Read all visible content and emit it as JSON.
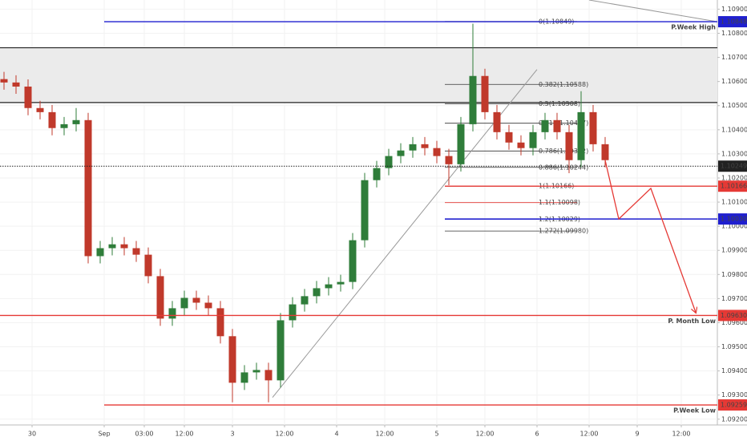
{
  "chart_data": {
    "type": "candlestick",
    "xlim": [
      0,
      179
    ],
    "xticks": [
      {
        "value": 8,
        "label": "30"
      },
      {
        "value": 26,
        "label": "Sep"
      },
      {
        "value": 36,
        "label": "03:00"
      },
      {
        "value": 46,
        "label": "12:00"
      },
      {
        "value": 58,
        "label": "3"
      },
      {
        "value": 71,
        "label": "12:00"
      },
      {
        "value": 84,
        "label": "4"
      },
      {
        "value": 96,
        "label": "12:00"
      },
      {
        "value": 109,
        "label": "5"
      },
      {
        "value": 121,
        "label": "12:00"
      },
      {
        "value": 134,
        "label": "6"
      },
      {
        "value": 147,
        "label": "12:00"
      },
      {
        "value": 159,
        "label": "9"
      },
      {
        "value": 170,
        "label": "12:00"
      }
    ],
    "ylim": [
      1.09176,
      1.10938
    ],
    "yticks": [
      {
        "value": 1.092,
        "label": "1.09200"
      },
      {
        "value": 1.093,
        "label": "1.09300"
      },
      {
        "value": 1.094,
        "label": "1.09400"
      },
      {
        "value": 1.095,
        "label": "1.09500"
      },
      {
        "value": 1.096,
        "label": "1.09600"
      },
      {
        "value": 1.097,
        "label": "1.09700"
      },
      {
        "value": 1.098,
        "label": "1.09800"
      },
      {
        "value": 1.099,
        "label": "1.09900"
      },
      {
        "value": 1.1,
        "label": "1.10000"
      },
      {
        "value": 1.101,
        "label": "1.10100"
      },
      {
        "value": 1.102,
        "label": "1.10200"
      },
      {
        "value": 1.103,
        "label": "1.10300"
      },
      {
        "value": 1.104,
        "label": "1.10400"
      },
      {
        "value": 1.105,
        "label": "1.10500"
      },
      {
        "value": 1.106,
        "label": "1.10600"
      },
      {
        "value": 1.107,
        "label": "1.10700"
      },
      {
        "value": 1.108,
        "label": "1.10800"
      },
      {
        "value": 1.109,
        "label": "1.10900"
      }
    ],
    "grid": true,
    "up_color": "#2f7d3a",
    "down_color": "#c0392b",
    "x": [
      1,
      4,
      7,
      10,
      13,
      16,
      19,
      22,
      25,
      28,
      31,
      34,
      37,
      40,
      43,
      46,
      49,
      52,
      55,
      58,
      61,
      64,
      67,
      70,
      73,
      76,
      79,
      82,
      85,
      88,
      91,
      94,
      97,
      100,
      103,
      106,
      109,
      112,
      115,
      118,
      121,
      124,
      127,
      130,
      133,
      136,
      139,
      142,
      145,
      148,
      151
    ],
    "open": [
      1.1061,
      1.10596,
      1.10579,
      1.1049,
      1.10473,
      1.10407,
      1.10423,
      1.1044,
      1.09876,
      1.09909,
      1.09925,
      1.09909,
      1.09882,
      1.09793,
      1.09617,
      1.0966,
      1.09703,
      1.09683,
      1.0966,
      1.09544,
      1.09351,
      1.09394,
      1.09404,
      1.09361,
      1.0961,
      1.09676,
      1.0971,
      1.09743,
      1.09759,
      1.09769,
      1.09942,
      1.10191,
      1.10241,
      1.10291,
      1.10314,
      1.1034,
      1.10324,
      1.10291,
      1.10257,
      1.10423,
      1.10623,
      1.10473,
      1.1039,
      1.10347,
      1.10324,
      1.1039,
      1.1044,
      1.1039,
      1.10274,
      1.10473,
      1.1034
    ],
    "high": [
      1.1064,
      1.10626,
      1.10609,
      1.1052,
      1.10503,
      1.10453,
      1.1049,
      1.1047,
      1.09939,
      1.09955,
      1.09955,
      1.09939,
      1.09912,
      1.09823,
      1.0969,
      1.09733,
      1.09733,
      1.09713,
      1.0969,
      1.09574,
      1.09424,
      1.09434,
      1.09434,
      1.0964,
      1.09706,
      1.0974,
      1.09773,
      1.09789,
      1.09799,
      1.09972,
      1.10221,
      1.10271,
      1.10321,
      1.10344,
      1.1037,
      1.1037,
      1.10354,
      1.10321,
      1.10453,
      1.1084,
      1.10653,
      1.10503,
      1.1042,
      1.10377,
      1.1042,
      1.1047,
      1.1047,
      1.1042,
      1.1056,
      1.10503,
      1.1037
    ],
    "low": [
      1.10566,
      1.10549,
      1.1046,
      1.10443,
      1.10377,
      1.10377,
      1.10393,
      1.09846,
      1.09846,
      1.09879,
      1.09879,
      1.09852,
      1.09763,
      1.09587,
      1.09587,
      1.0963,
      1.09653,
      1.0963,
      1.09514,
      1.0927,
      1.09321,
      1.09364,
      1.0927,
      1.09331,
      1.0958,
      1.09646,
      1.0968,
      1.09713,
      1.09729,
      1.09739,
      1.09912,
      1.10161,
      1.10211,
      1.10261,
      1.10284,
      1.10294,
      1.10261,
      1.1017,
      1.10227,
      1.10393,
      1.10443,
      1.1036,
      1.10317,
      1.10294,
      1.10294,
      1.1036,
      1.1036,
      1.1022,
      1.10244,
      1.1031,
      1.10244
    ],
    "close": [
      1.10596,
      1.10579,
      1.1049,
      1.10473,
      1.10407,
      1.10423,
      1.1044,
      1.09876,
      1.09909,
      1.09925,
      1.09909,
      1.09882,
      1.09793,
      1.09617,
      1.0966,
      1.09703,
      1.09683,
      1.0966,
      1.09544,
      1.09351,
      1.09394,
      1.09404,
      1.09361,
      1.0961,
      1.09676,
      1.0971,
      1.09743,
      1.09759,
      1.09769,
      1.09942,
      1.10191,
      1.10241,
      1.10291,
      1.10314,
      1.1034,
      1.10324,
      1.10291,
      1.10257,
      1.10423,
      1.10623,
      1.10473,
      1.1039,
      1.10347,
      1.10324,
      1.1039,
      1.1044,
      1.1039,
      1.10274,
      1.10473,
      1.1034,
      1.10274
    ],
    "zone": {
      "y": [
        1.10513,
        1.1074
      ],
      "color": "#ebebeb"
    },
    "levels": [
      {
        "label": "P.Week High",
        "value": 1.10848,
        "color": "#1f1fcf",
        "x0": 26
      },
      {
        "value": 1.10249,
        "color": "#222222",
        "x0": 0,
        "dotted": true
      },
      {
        "value": 1.10166,
        "color": "#e53935",
        "x0": 111
      },
      {
        "value": 1.1003,
        "value_label": "1.10030",
        "color": "#1f1fcf",
        "x0": 111
      },
      {
        "label": "P. Month Low",
        "value": 1.0963,
        "value_label": "1.09630",
        "color": "#e53935",
        "x0": 0
      },
      {
        "label": "P.Week Low",
        "value": 1.09259,
        "color": "#e53935",
        "x0": 26
      }
    ],
    "fib_x": [
      111,
      144
    ],
    "fib_levels": [
      {
        "label": "0(1.10849)",
        "value": 1.10849,
        "color": "#333333"
      },
      {
        "label": "0.382(1.10588)",
        "value": 1.10588,
        "color": "#333333"
      },
      {
        "label": "0.5(1.10508)",
        "value": 1.10508,
        "color": "#333333"
      },
      {
        "label": "0.618(1.10427)",
        "value": 1.10427,
        "color": "#333333"
      },
      {
        "label": "0.786(1.10312)",
        "value": 1.10312,
        "color": "#333333"
      },
      {
        "label": "0.886(1.10244)",
        "value": 1.10244,
        "color": "#333333"
      },
      {
        "label": "1(1.10166)",
        "value": 1.10166,
        "color": "#8b1a1a"
      },
      {
        "label": "1.1(1.10098)",
        "value": 1.10098,
        "color": "#e53935"
      },
      {
        "label": "1.2(1.10029)",
        "value": 1.10029,
        "color": "#1f1fcf"
      },
      {
        "label": "1.272(1.09980)",
        "value": 1.0998,
        "color": "#333333"
      }
    ],
    "trendlines": [
      {
        "x": [
          68,
          134
        ],
        "y": [
          1.0929,
          1.1065
        ],
        "color": "#999999"
      },
      {
        "x": [
          147,
          179
        ],
        "y": [
          1.10938,
          1.10848
        ],
        "color": "#999999"
      }
    ],
    "projection": {
      "x": [
        151,
        154.4,
        162.4,
        173.6
      ],
      "y": [
        1.10274,
        1.1003,
        1.10157,
        1.09643
      ],
      "color": "#e53935"
    }
  }
}
